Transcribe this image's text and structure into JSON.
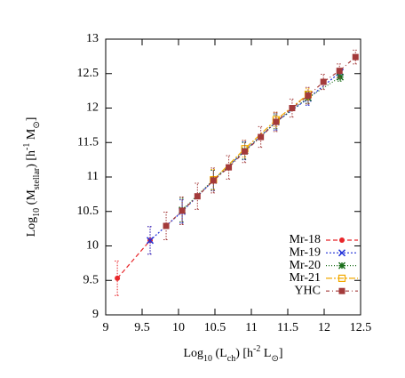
{
  "chart_data": {
    "type": "errorbar-line",
    "x_label": [
      "Log",
      "10",
      " (L",
      "ch",
      ") [h",
      "-2",
      " L",
      "⊙",
      "]"
    ],
    "y_label": [
      "Log",
      "10",
      " (M",
      "stellar",
      ") [h",
      "-1",
      " M",
      "⊙",
      "]"
    ],
    "xlim": [
      9,
      12.5
    ],
    "xticks": [
      9,
      9.5,
      10,
      10.5,
      11,
      11.5,
      12,
      12.5
    ],
    "ylim": [
      9,
      13
    ],
    "yticks": [
      9,
      9.5,
      10,
      10.5,
      11,
      11.5,
      12,
      12.5,
      13
    ],
    "legend": "bottom-right",
    "series": [
      {
        "name": "Mr-18",
        "color": "#e8262a",
        "marker": "circle",
        "dash": "5,3",
        "x": [
          9.16,
          9.61
        ],
        "values": [
          9.53,
          10.08
        ],
        "errors": [
          0.25,
          0.2
        ]
      },
      {
        "name": "Mr-19",
        "color": "#2030d8",
        "marker": "x",
        "dash": "2,2",
        "x": [
          9.61,
          10.05,
          10.48,
          10.91,
          11.34,
          11.78,
          12.22
        ],
        "values": [
          10.08,
          10.5,
          10.95,
          11.38,
          11.8,
          12.14,
          12.52
        ],
        "errors": [
          0.2,
          0.17,
          0.15,
          0.13,
          0.12,
          0.1,
          0.05
        ]
      },
      {
        "name": "Mr-20",
        "color": "#1b6e1b",
        "marker": "star",
        "dash": "1,2",
        "x": [
          10.05,
          10.48,
          10.91,
          11.34,
          11.78,
          12.22
        ],
        "values": [
          10.52,
          10.96,
          11.38,
          11.8,
          12.15,
          12.45
        ],
        "errors": [
          0.17,
          0.14,
          0.12,
          0.1,
          0.08,
          0.06
        ]
      },
      {
        "name": "Mr-21",
        "color": "#f2a900",
        "marker": "square-open",
        "dash": "7,2,2,2",
        "x": [
          10.48,
          10.91,
          11.34,
          11.78
        ],
        "values": [
          10.96,
          11.41,
          11.83,
          12.2
        ],
        "errors": [
          0.15,
          0.12,
          0.1,
          0.08
        ]
      },
      {
        "name": "YHC",
        "color": "#a33a3a",
        "marker": "square",
        "dash": "4,3,1,3",
        "x": [
          9.83,
          10.05,
          10.26,
          10.48,
          10.69,
          10.91,
          11.13,
          11.34,
          11.56,
          11.78,
          11.99,
          12.21,
          12.43
        ],
        "values": [
          10.29,
          10.51,
          10.72,
          10.95,
          11.14,
          11.37,
          11.58,
          11.8,
          12.0,
          12.18,
          12.38,
          12.54,
          12.74
        ],
        "errors": [
          0.2,
          0.2,
          0.19,
          0.18,
          0.17,
          0.16,
          0.15,
          0.14,
          0.13,
          0.12,
          0.11,
          0.1,
          0.1
        ]
      }
    ]
  }
}
